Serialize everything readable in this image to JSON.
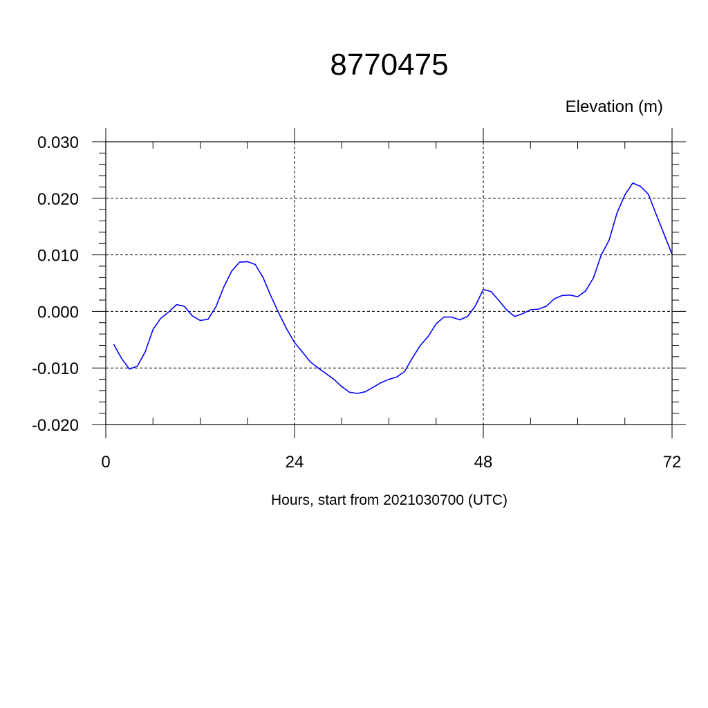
{
  "chart_data": {
    "type": "line",
    "title": "8770475",
    "ylabel": "Elevation (m)",
    "xlabel": "Hours, start from 2021030700 (UTC)",
    "xlim": [
      0,
      72
    ],
    "ylim": [
      -0.02,
      0.03
    ],
    "x_ticks": [
      0,
      24,
      48,
      72
    ],
    "x_tick_labels": [
      "0",
      "24",
      "48",
      "72"
    ],
    "y_ticks": [
      -0.02,
      -0.01,
      0.0,
      0.01,
      0.02,
      0.03
    ],
    "y_tick_labels": [
      "-0.020",
      "-0.010",
      "0.000",
      "0.010",
      "0.020",
      "0.030"
    ],
    "grid": true,
    "series": [
      {
        "color": "#0000ff",
        "x": [
          1,
          2,
          3,
          4,
          5,
          6,
          7,
          8,
          9,
          10,
          11,
          12,
          13,
          14,
          15,
          16,
          17,
          18,
          19,
          20,
          21,
          22,
          23,
          24,
          25,
          26,
          27,
          28,
          29,
          30,
          31,
          32,
          33,
          34,
          35,
          36,
          37,
          38,
          39,
          40,
          41,
          42,
          43,
          44,
          45,
          46,
          47,
          48,
          49,
          50,
          51,
          52,
          53,
          54,
          55,
          56,
          57,
          58,
          59,
          60,
          61,
          62,
          63,
          64,
          65,
          66,
          67,
          68,
          69,
          70,
          71,
          72
        ],
        "values": [
          -0.0058,
          -0.0083,
          -0.0102,
          -0.0097,
          -0.0072,
          -0.0032,
          -0.0012,
          -0.0001,
          0.0012,
          0.0009,
          -0.0008,
          -0.0016,
          -0.0014,
          0.0008,
          0.0043,
          0.0071,
          0.0087,
          0.0088,
          0.0083,
          0.006,
          0.0027,
          -0.0003,
          -0.0031,
          -0.0055,
          -0.0072,
          -0.0089,
          -0.01,
          -0.011,
          -0.012,
          -0.0133,
          -0.0143,
          -0.0145,
          -0.0142,
          -0.0134,
          -0.0126,
          -0.012,
          -0.0116,
          -0.0106,
          -0.0082,
          -0.006,
          -0.0044,
          -0.0022,
          -0.001,
          -0.001,
          -0.0015,
          -0.0009,
          0.001,
          0.0039,
          0.0035,
          0.0019,
          0.0002,
          -0.0009,
          -0.0004,
          0.0003,
          0.0004,
          0.0009,
          0.0022,
          0.0028,
          0.0029,
          0.0026,
          0.0036,
          0.0059,
          0.01,
          0.0126,
          0.0174,
          0.0206,
          0.0227,
          0.0221,
          0.0207,
          0.0171,
          0.0136,
          0.0101
        ]
      }
    ]
  }
}
